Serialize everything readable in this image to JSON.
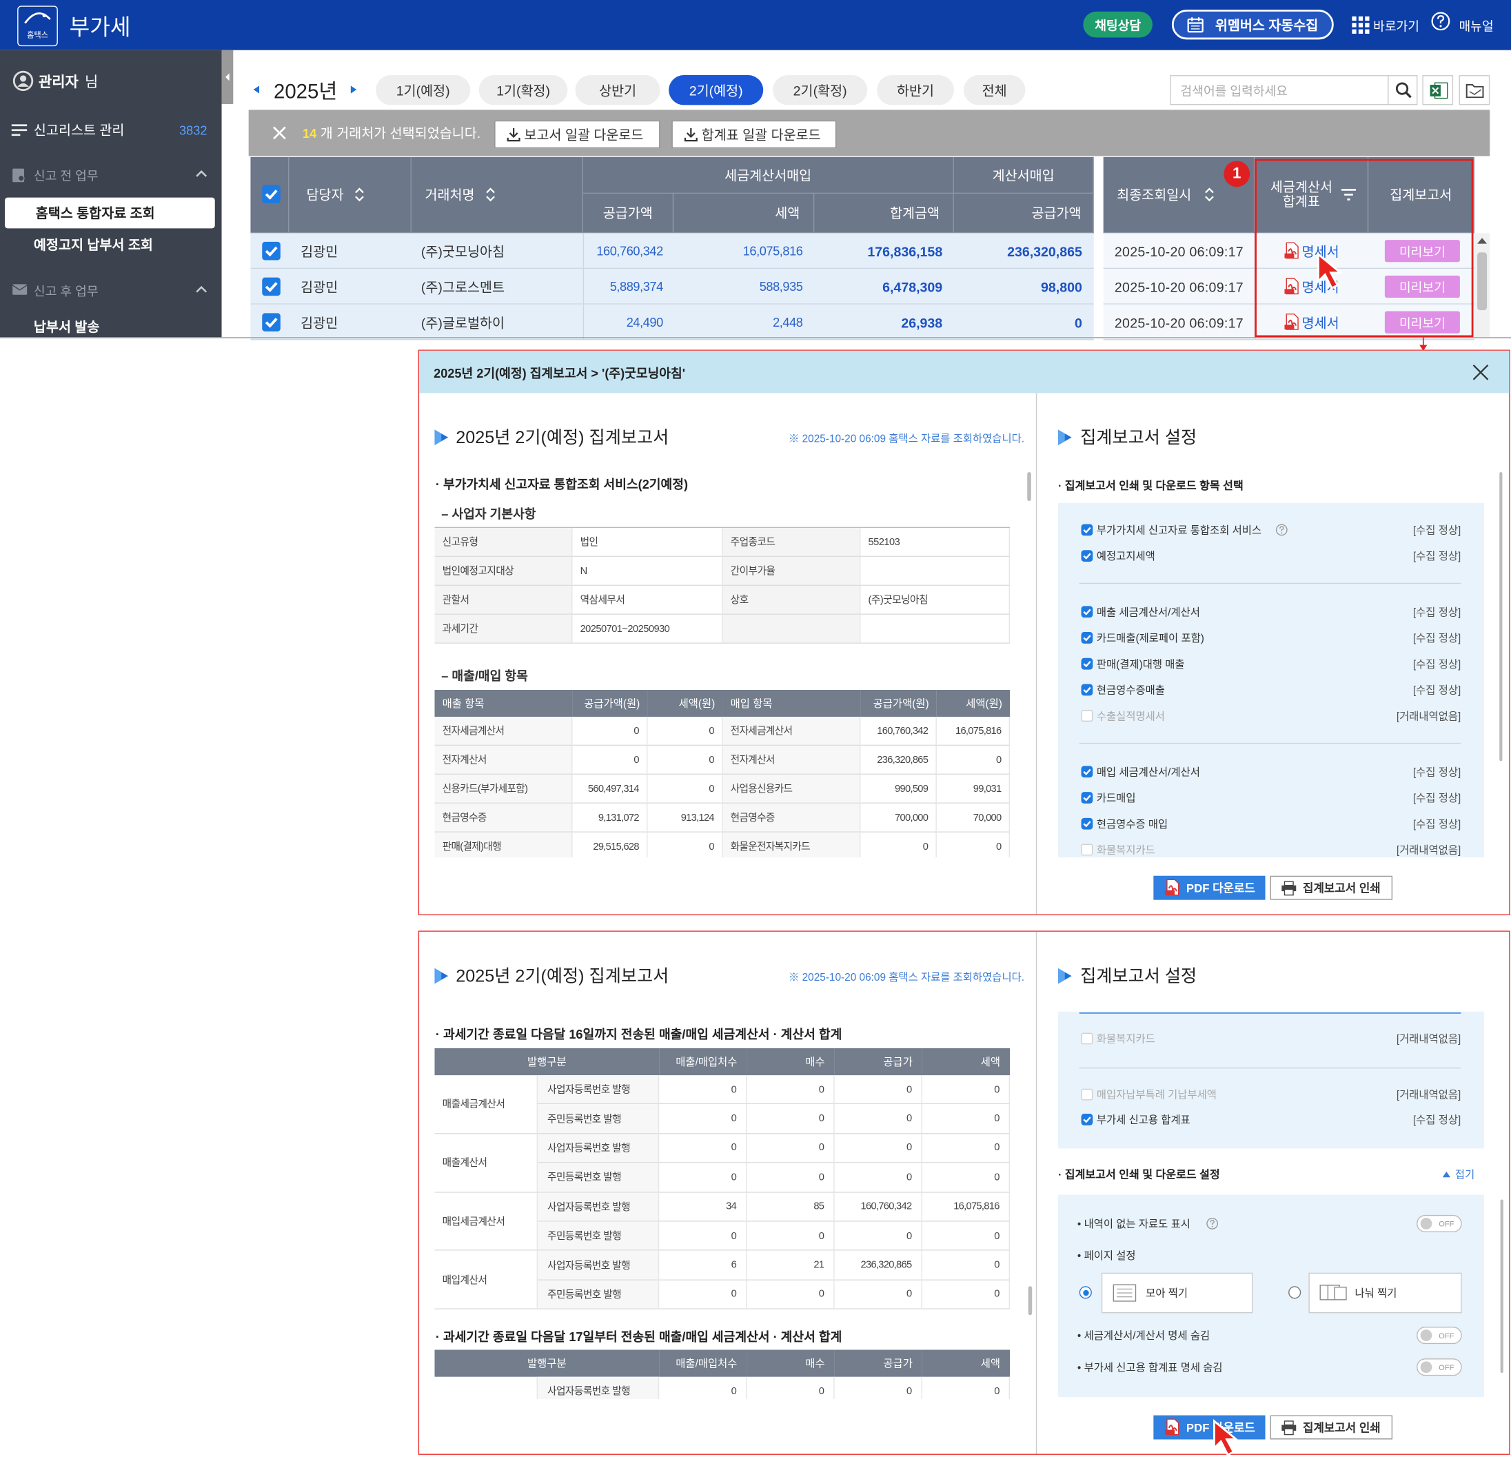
{
  "header": {
    "logo": "홈택스",
    "title": "부가세",
    "chat": "채팅상담",
    "auto_collect": "위멤버스 자동수집",
    "shortcut": "바로가기",
    "manual": "매뉴얼"
  },
  "sidebar": {
    "user": "관리자",
    "user_suffix": "님",
    "report_list": "신고리스트 관리",
    "report_count": 3832,
    "before_group": "신고 전 업무",
    "before_items": [
      "홈택스 통합자료 조회",
      "예정고지 납부서 조회"
    ],
    "after_group": "신고 후 업무",
    "after_items": [
      "납부서 발송"
    ]
  },
  "toolbar": {
    "year": "2025년",
    "periods": [
      "1기(예정)",
      "1기(확정)",
      "상반기",
      "2기(예정)",
      "2기(확정)",
      "하반기",
      "전체"
    ],
    "active_period": 3,
    "search_placeholder": "검색어를 입력하세요"
  },
  "selection": {
    "count": 14,
    "message": "개 거래처가 선택되었습니다.",
    "buttons": [
      "보고서 일괄 다운로드",
      "합계표 일괄 다운로드"
    ]
  },
  "client_table": {
    "headers": {
      "manager": "담당자",
      "client": "거래처명",
      "tax_invoice_purchase": "세금계산서매입",
      "supply": "공급가액",
      "tax": "세액",
      "total": "합계금액",
      "invoice_purchase": "계산서매입",
      "invoice_supply": "공급가액",
      "last_query": "최종조회일시",
      "summary": "세금계산서 합계표",
      "report": "집계보고서"
    },
    "rows": [
      [
        "김광민",
        "(주)굿모닝아침",
        "160,760,342",
        "16,075,816",
        "176,836,158",
        "236,320,865",
        "2025-10-20 06:09:17",
        "명세서",
        "미리보기"
      ],
      [
        "김광민",
        "(주)그로스멘트",
        "5,889,374",
        "588,935",
        "6,478,309",
        "98,800",
        "2025-10-20 06:09:17",
        "명세서",
        "미리보기"
      ],
      [
        "김광민",
        "(주)글로벌하이",
        "24,490",
        "2,448",
        "26,938",
        "0",
        "2025-10-20 06:09:17",
        "명세서",
        "미리보기"
      ]
    ],
    "callout": 1
  },
  "report_view": {
    "breadcrumb": "2025년 2기(예정) 집계보고서 > '(주)굿모닝아침'",
    "title": "2025년 2기(예정) 집계보고서",
    "notice": "※ 2025-10-20 06:09 홈택스 자료를 조회하였습니다.",
    "section": "· 부가가치세 신고자료 통합조회 서비스(2기예정)",
    "basic_title": "– 사업자 기본사항",
    "basic_rows": [
      [
        "신고유형",
        "법인",
        "주업종코드",
        "552103"
      ],
      [
        "법인예정고지대상",
        "N",
        "간이부가율",
        null
      ],
      [
        "관할서",
        "역삼세무서",
        "상호",
        "(주)굿모닝아침"
      ],
      [
        "과세기간",
        "20250701~20250930",
        null,
        null
      ]
    ],
    "items_title": "– 매출/매입 항목",
    "items_header": [
      "매출 항목",
      "공급가액(원)",
      "세액(원)",
      "매입 항목",
      "공급가액(원)",
      "세액(원)"
    ],
    "items_rows": [
      [
        "전자세금계산서",
        "0",
        "0",
        "전자세금계산서",
        "160,760,342",
        "16,075,816"
      ],
      [
        "전자계산서",
        "0",
        "0",
        "전자계산서",
        "236,320,865",
        "0"
      ],
      [
        "신용카드(부가세포함)",
        "560,497,314",
        "0",
        "사업용신용카드",
        "990,509",
        "99,031"
      ],
      [
        "현금영수증",
        "9,131,072",
        "913,124",
        "현금영수증",
        "700,000",
        "70,000"
      ],
      [
        "판매(결제)대행",
        "29,515,628",
        "0",
        "화물운전자복지카드",
        "0",
        "0"
      ]
    ]
  },
  "totals_view": {
    "header": [
      "발행구분",
      "매출/매입처수",
      "매수",
      "공급가",
      "세액"
    ],
    "sections": [
      {
        "title": "· 과세기간 종료일 다음달 16일까지 전송된 매출/매입 세금계산서 · 계산서 합계",
        "groups": [
          {
            "name": "매출세금계산서",
            "rows": [
              {
                "type": "사업자등록번호 발행",
                "values": [
                  "0",
                  "0",
                  "0",
                  "0"
                ]
              },
              {
                "type": "주민등록번호 발행",
                "values": [
                  "0",
                  "0",
                  "0",
                  "0"
                ]
              }
            ]
          },
          {
            "name": "매출계산서",
            "rows": [
              {
                "type": "사업자등록번호 발행",
                "values": [
                  "0",
                  "0",
                  "0",
                  "0"
                ]
              },
              {
                "type": "주민등록번호 발행",
                "values": [
                  "0",
                  "0",
                  "0",
                  "0"
                ]
              }
            ]
          },
          {
            "name": "매입세금계산서",
            "rows": [
              {
                "type": "사업자등록번호 발행",
                "values": [
                  "34",
                  "85",
                  "160,760,342",
                  "16,075,816"
                ]
              },
              {
                "type": "주민등록번호 발행",
                "values": [
                  "0",
                  "0",
                  "0",
                  "0"
                ]
              }
            ]
          },
          {
            "name": "매입계산서",
            "rows": [
              {
                "type": "사업자등록번호 발행",
                "values": [
                  "6",
                  "21",
                  "236,320,865",
                  "0"
                ]
              },
              {
                "type": "주민등록번호 발행",
                "values": [
                  "0",
                  "0",
                  "0",
                  "0"
                ]
              }
            ]
          }
        ]
      },
      {
        "title": "· 과세기간 종료일 다음달 17일부터 전송된 매출/매입 세금계산서 · 계산서 합계",
        "groups": [
          {
            "rows": [
              {
                "type": "사업자등록번호 발행",
                "values": [
                  "0",
                  "0",
                  "0",
                  "0"
                ]
              }
            ]
          }
        ]
      }
    ]
  },
  "settings_view": {
    "title": "집계보고서 설정",
    "select_title": "· 집계보고서 인쇄 및 다운로드 항목 선택",
    "item_groups": [
      [
        {
          "label": "부가가치세 신고자료 통합조회 서비스",
          "status": "[수집 정상]",
          "checked": true,
          "enabled": true
        },
        {
          "label": "예정고지세액",
          "status": "[수집 정상]",
          "checked": true,
          "enabled": true
        }
      ],
      [
        {
          "label": "매출 세금계산서/계산서",
          "status": "[수집 정상]",
          "checked": true,
          "enabled": true
        },
        {
          "label": "카드매출(제로페이 포함)",
          "status": "[수집 정상]",
          "checked": true,
          "enabled": true
        },
        {
          "label": "판매(결제)대행 매출",
          "status": "[수집 정상]",
          "checked": true,
          "enabled": true
        },
        {
          "label": "현금영수증매출",
          "status": "[수집 정상]",
          "checked": true,
          "enabled": true
        },
        {
          "label": "수출실적명세서",
          "status": "[거래내역없음]",
          "checked": false,
          "enabled": false
        }
      ],
      [
        {
          "label": "매입 세금계산서/계산서",
          "status": "[수집 정상]",
          "checked": true,
          "enabled": true
        },
        {
          "label": "카드매입",
          "status": "[수집 정상]",
          "checked": true,
          "enabled": true
        },
        {
          "label": "현금영수증 매입",
          "status": "[수집 정상]",
          "checked": true,
          "enabled": true
        },
        {
          "label": "화물복지카드",
          "status": "[거래내역없음]",
          "checked": false,
          "enabled": false
        }
      ],
      [
        {
          "label": "매입자납부특례 기납부세액",
          "status": "[거래내역없음]",
          "checked": false,
          "enabled": false
        },
        {
          "label": "부가세 신고용 합계표",
          "status": "[수집 정상]",
          "checked": true,
          "enabled": true
        }
      ]
    ],
    "pdf": "PDF 다운로드",
    "print": "집계보고서 인쇄"
  },
  "print_settings": {
    "title": "· 집계보고서 인쇄 및 다운로드 설정",
    "collapse": "접기",
    "show_empty": "• 내역이 없는 자료도 표시",
    "page_setting": "• 페이지 설정",
    "layouts": [
      "모아 찍기",
      "나눠 찍기"
    ],
    "selected_layout": 0,
    "hide_invoice": "• 세금계산서/계산서 명세 숨김",
    "hide_summary": "• 부가세 신고용 합계표 명세 숨김",
    "off": "OFF"
  }
}
